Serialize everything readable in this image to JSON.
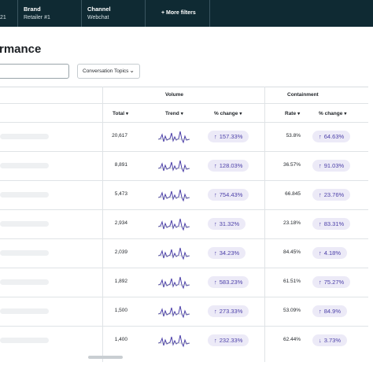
{
  "filters": {
    "first_value": "21",
    "brand_label": "Brand",
    "brand_value": "Retailer #1",
    "channel_label": "Channel",
    "channel_value": "Webchat",
    "more_label": "+ More filters"
  },
  "page": {
    "title": "rmance"
  },
  "controls": {
    "search_placeholder": "",
    "topics_label": "Conversation Topics"
  },
  "table": {
    "groups": {
      "volume": "Volume",
      "containment": "Containment"
    },
    "columns": {
      "total": "Total",
      "trend": "Trend",
      "volume_change": "% change",
      "rate": "Rate",
      "containment_change": "% change"
    },
    "sort_arrow": "▾",
    "rows": [
      {
        "total": "20,617",
        "volume_change": "157.33%",
        "volume_dir": "↑",
        "rate": "53.8%",
        "containment_change": "64.63%",
        "containment_dir": "↑"
      },
      {
        "total": "8,891",
        "volume_change": "128.03%",
        "volume_dir": "↑",
        "rate": "36.57%",
        "containment_change": "91.03%",
        "containment_dir": "↑"
      },
      {
        "total": "5,473",
        "volume_change": "754.43%",
        "volume_dir": "↑",
        "rate": "66.845",
        "containment_change": "23.76%",
        "containment_dir": "↑"
      },
      {
        "total": "2,934",
        "volume_change": "31.32%",
        "volume_dir": "↑",
        "rate": "23.18%",
        "containment_change": "83.31%",
        "containment_dir": "↑"
      },
      {
        "total": "2,039",
        "volume_change": "34.23%",
        "volume_dir": "↑",
        "rate": "84.45%",
        "containment_change": "4.18%",
        "containment_dir": "↑"
      },
      {
        "total": "1,892",
        "volume_change": "583.23%",
        "volume_dir": "↑",
        "rate": "61.51%",
        "containment_change": "75.27%",
        "containment_dir": "↑"
      },
      {
        "total": "1,500",
        "volume_change": "273.33%",
        "volume_dir": "↑",
        "rate": "53.09%",
        "containment_change": "84.9%",
        "containment_dir": "↑"
      },
      {
        "total": "1,400",
        "volume_change": "232.33%",
        "volume_dir": "↑",
        "rate": "62.44%",
        "containment_change": "3.73%",
        "containment_dir": "↓"
      }
    ]
  },
  "colors": {
    "topbar": "#0f2a33",
    "pill_bg": "#eceaf7",
    "pill_text": "#4b3fa8",
    "sparkline": "#4b3fa8"
  },
  "icons": {
    "dropdown": "chevron-down-icon",
    "up": "arrow-up-icon",
    "down": "arrow-down-icon",
    "trend": "sparkline-icon"
  }
}
